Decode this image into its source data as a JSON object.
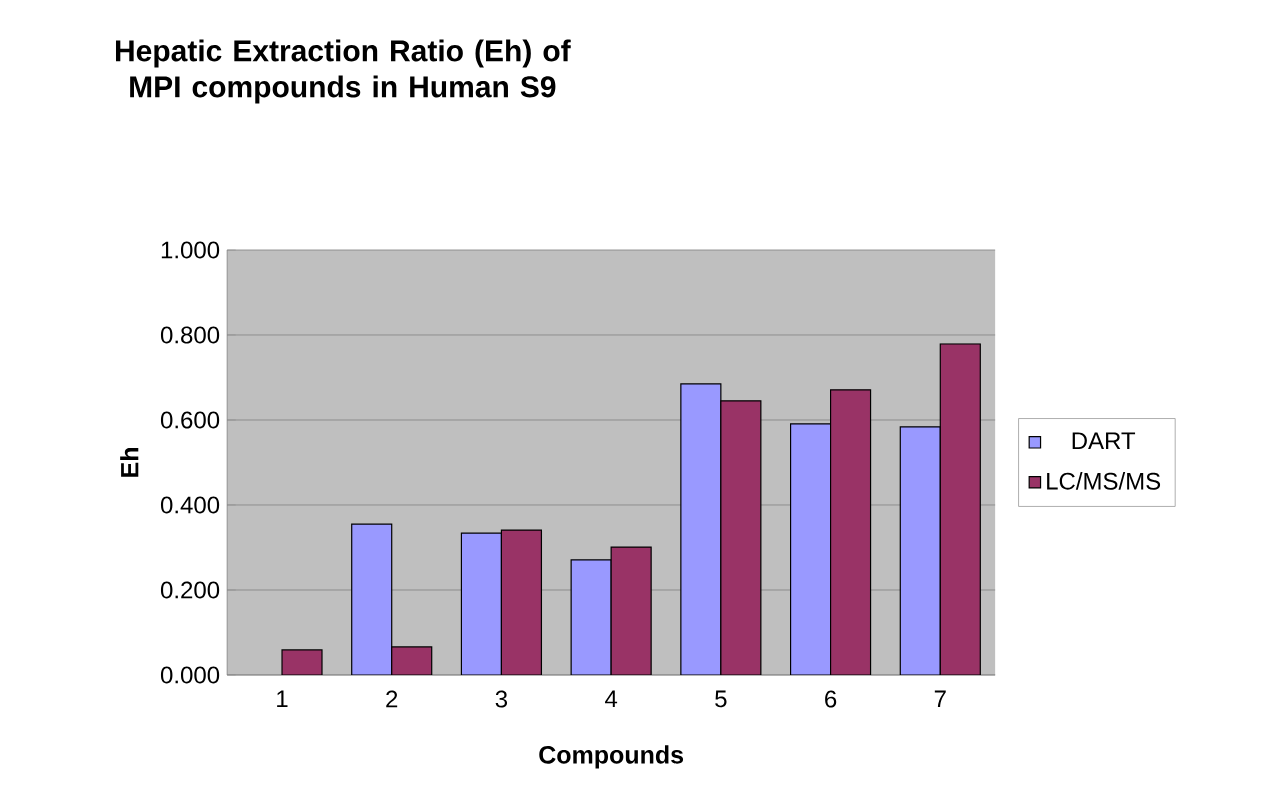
{
  "chart_data": {
    "type": "bar",
    "title": "Hepatic Extraction Ratio (Eh) of MPI compounds in Human S9",
    "xlabel": "Compounds",
    "ylabel": "Eh",
    "categories": [
      "1",
      "2",
      "3",
      "4",
      "5",
      "6",
      "7"
    ],
    "series": [
      {
        "name": "DART",
        "color": "#9999ff",
        "values": [
          null,
          0.355,
          0.334,
          0.271,
          0.685,
          0.591,
          0.584
        ]
      },
      {
        "name": "LC/MS/MS",
        "color": "#993366",
        "values": [
          0.059,
          0.066,
          0.341,
          0.301,
          0.645,
          0.671,
          0.779
        ]
      }
    ],
    "ylim": [
      0,
      1
    ],
    "yticks": [
      {
        "value": 0,
        "label": "0.000"
      },
      {
        "value": 0.2,
        "label": "0.200"
      },
      {
        "value": 0.4,
        "label": "0.400"
      },
      {
        "value": 0.6,
        "label": "0.600"
      },
      {
        "value": 0.8,
        "label": "0.800"
      },
      {
        "value": 1,
        "label": "1.000"
      }
    ],
    "grid": "y",
    "legend": "right"
  }
}
